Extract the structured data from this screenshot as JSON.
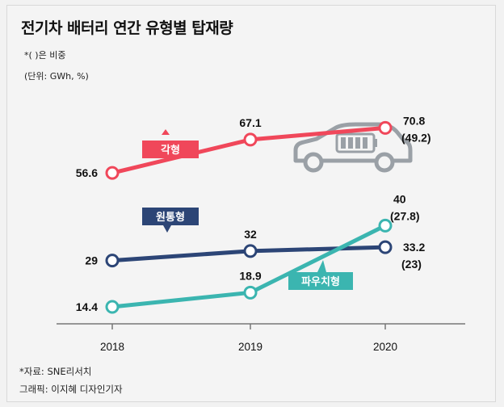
{
  "title": "전기차 배터리 연간 유형별 탑재량",
  "note_ratio": "*( )은 비중",
  "note_unit": "(단위: GWh, %)",
  "source": "*자료: SNE리서치",
  "credit": "그래픽: 이지혜 디자인기자",
  "colors": {
    "pouch": "#f0475a",
    "cylindrical": "#2c4576",
    "prismatic": "#3bb5b0"
  },
  "chart_data": {
    "type": "line",
    "title": "전기차 배터리 연간 유형별 탑재량",
    "xlabel": "",
    "ylabel": "GWh",
    "x": [
      "2018",
      "2019",
      "2020"
    ],
    "series": [
      {
        "name": "각형",
        "values": [
          56.6,
          67.1,
          70.8
        ],
        "labels": [
          "56.6",
          "67.1",
          "70.8"
        ],
        "shares": [
          null,
          null,
          "(49.2)"
        ]
      },
      {
        "name": "원통형",
        "values": [
          29,
          32,
          33.2
        ],
        "labels": [
          "29",
          "32",
          "33.2"
        ],
        "shares": [
          null,
          null,
          "(23)"
        ]
      },
      {
        "name": "파우치형",
        "values": [
          14.4,
          18.9,
          40
        ],
        "labels": [
          "14.4",
          "18.9",
          "40"
        ],
        "shares": [
          null,
          null,
          "(27.8)"
        ]
      }
    ]
  }
}
